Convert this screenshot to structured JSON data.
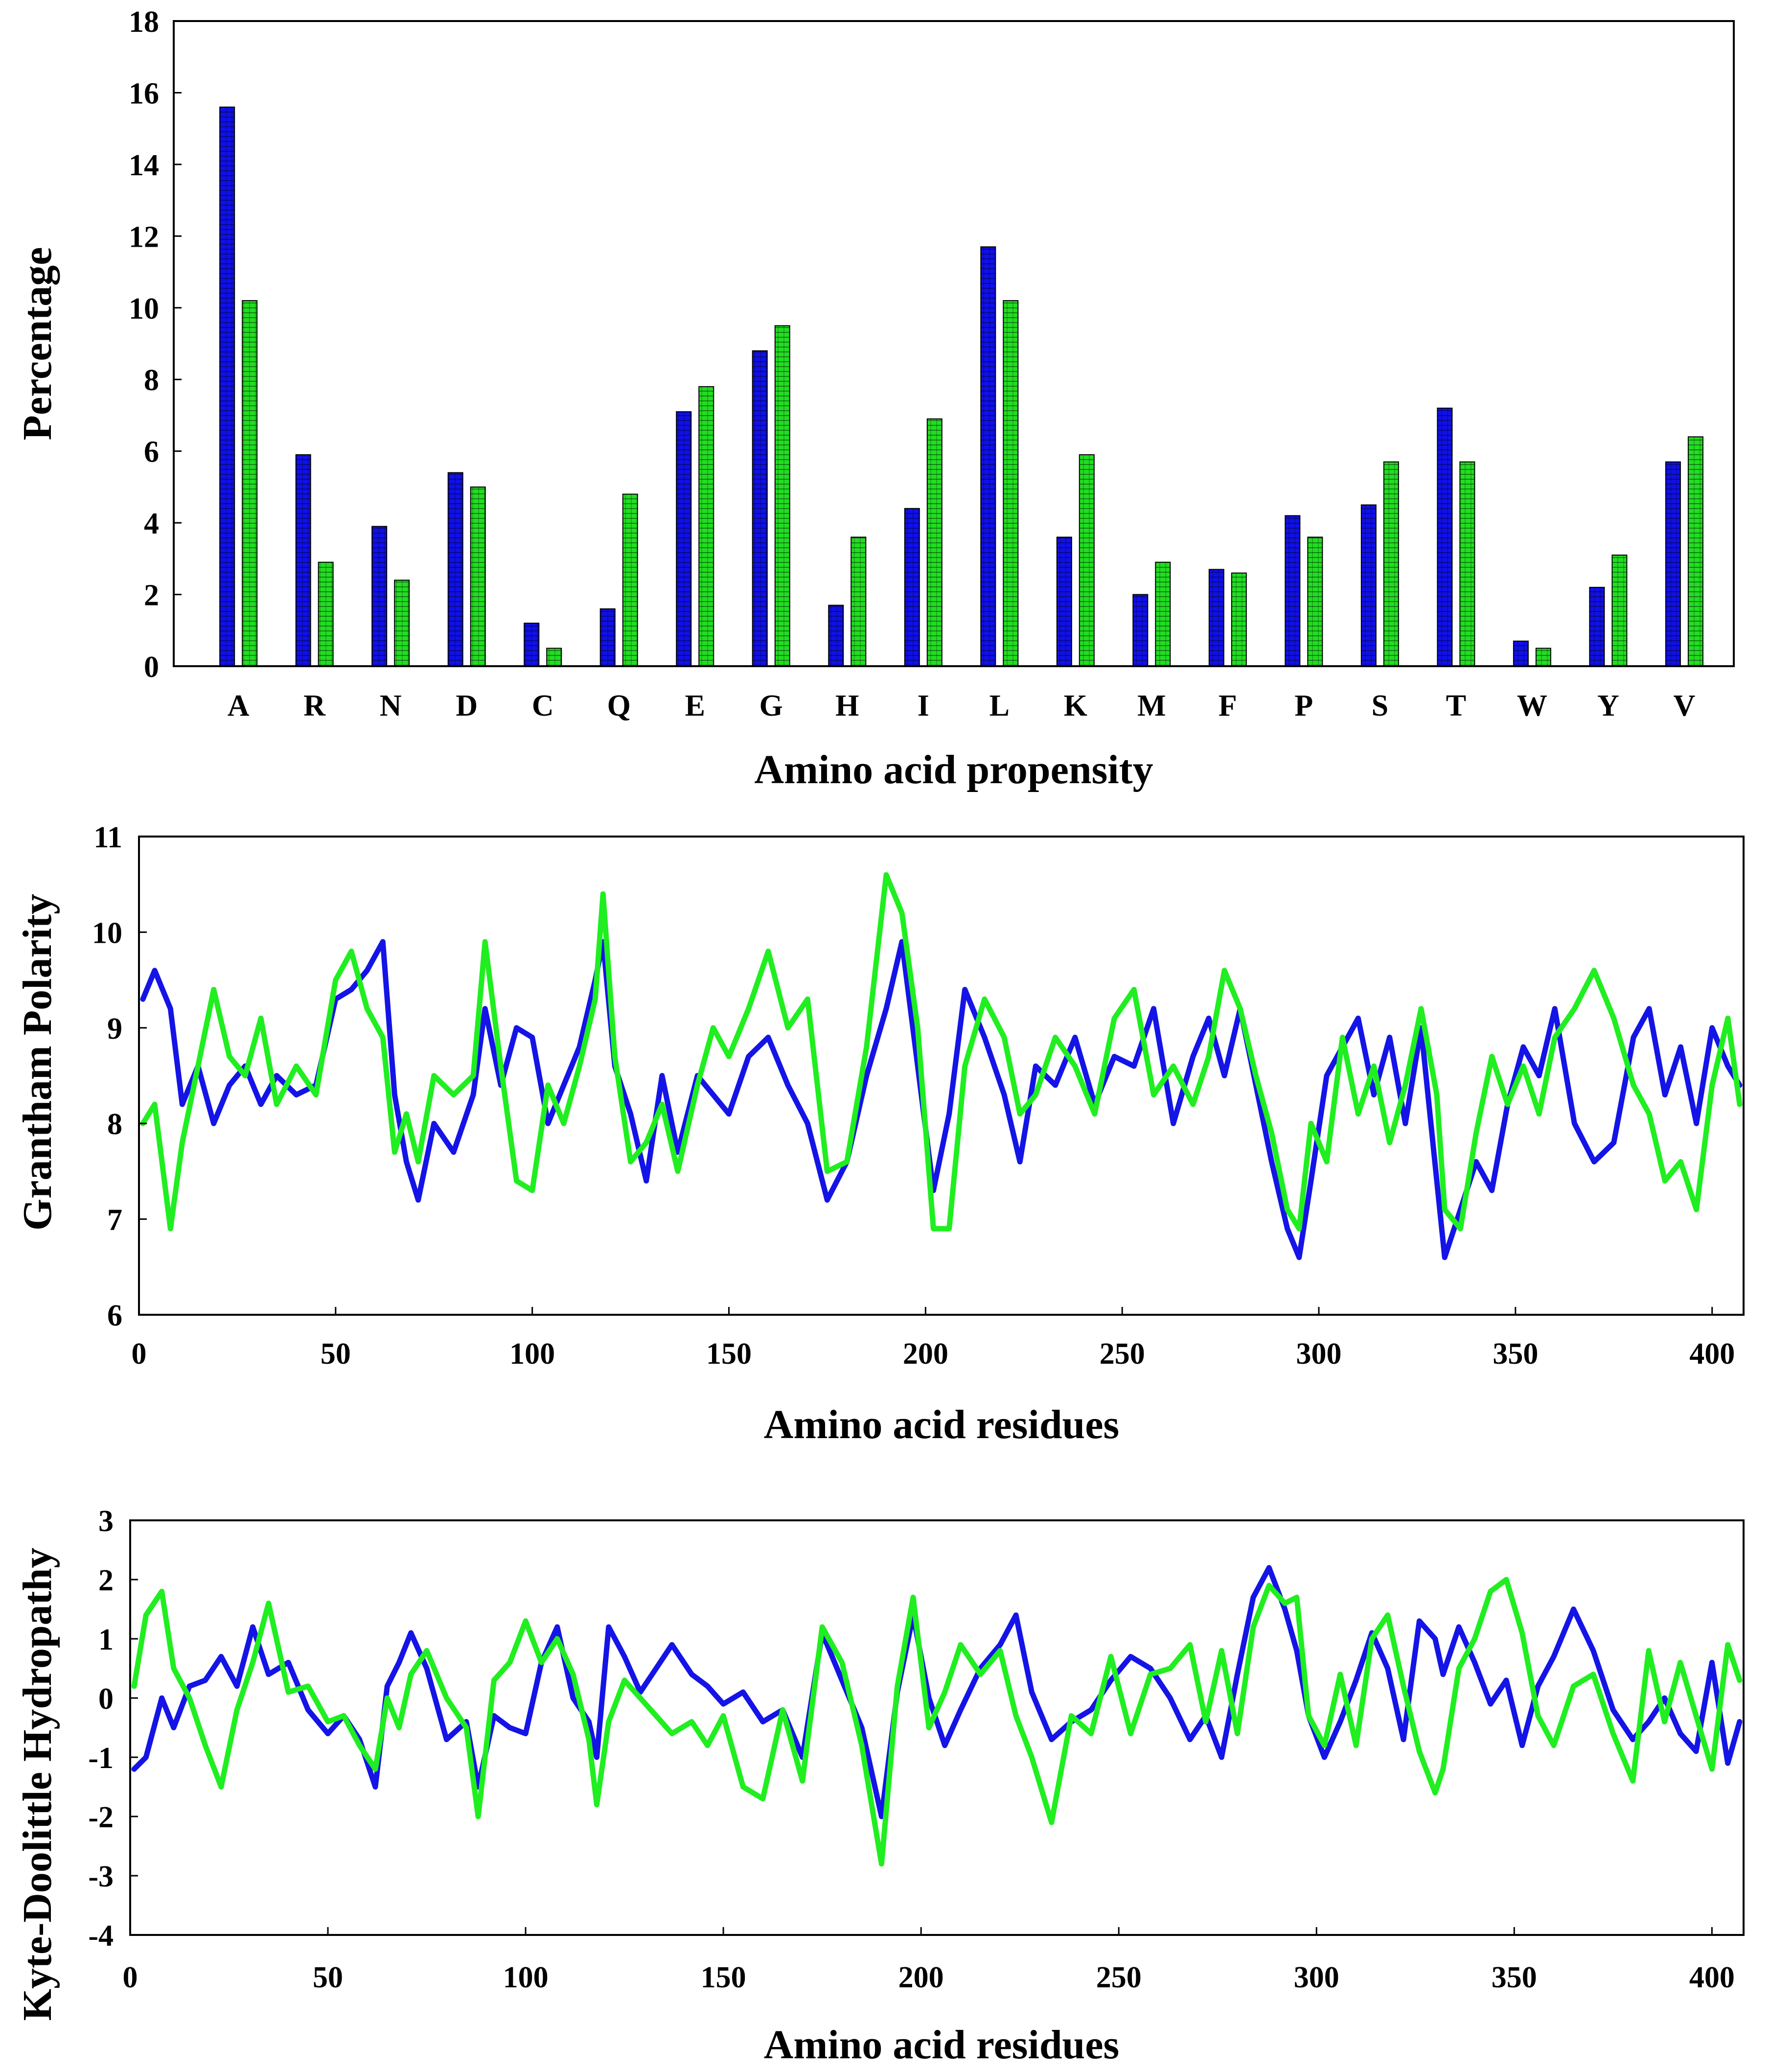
{
  "colors": {
    "series_blue": "#1010e8",
    "series_green": "#22dd22",
    "line_blue": "#1414e6",
    "line_green": "#20ee20",
    "axis": "#000000"
  },
  "chart_data": [
    {
      "id": "composition",
      "type": "bar",
      "title": "",
      "xlabel": "Amino acid propensity",
      "ylabel": "Percentage",
      "ylim": [
        0,
        18
      ],
      "yticks": [
        "0",
        "2",
        "4",
        "6",
        "8",
        "10",
        "12",
        "14",
        "16",
        "18"
      ],
      "categories": [
        "A",
        "R",
        "N",
        "D",
        "C",
        "Q",
        "E",
        "G",
        "H",
        "I",
        "L",
        "K",
        "M",
        "F",
        "P",
        "S",
        "T",
        "W",
        "Y",
        "V"
      ],
      "series": [
        {
          "name": "blue",
          "values": [
            15.6,
            5.9,
            3.9,
            5.4,
            1.2,
            1.6,
            7.1,
            8.8,
            1.7,
            4.4,
            11.7,
            3.6,
            2.0,
            2.7,
            4.2,
            4.5,
            7.2,
            0.7,
            2.2,
            5.7
          ]
        },
        {
          "name": "green",
          "values": [
            10.2,
            2.9,
            2.4,
            5.0,
            0.5,
            4.8,
            7.8,
            9.5,
            3.6,
            6.9,
            10.2,
            5.9,
            2.9,
            2.6,
            3.6,
            5.7,
            5.7,
            0.5,
            3.1,
            6.4
          ]
        }
      ]
    },
    {
      "id": "polarity",
      "type": "line",
      "title": "",
      "xlabel": "Amino acid residues",
      "ylabel": "Grantham Polarity",
      "xlim": [
        0,
        408
      ],
      "ylim": [
        6,
        11
      ],
      "xticks": [
        "0",
        "50",
        "100",
        "150",
        "200",
        "250",
        "300",
        "350",
        "400"
      ],
      "yticks": [
        "6",
        "7",
        "8",
        "9",
        "10",
        "11"
      ],
      "series": [
        {
          "name": "blue",
          "x": [
            1,
            4,
            8,
            11,
            15,
            19,
            23,
            27,
            31,
            35,
            40,
            45,
            50,
            54,
            58,
            62,
            65,
            68,
            71,
            75,
            80,
            85,
            88,
            92,
            96,
            100,
            104,
            108,
            112,
            116,
            118,
            121,
            125,
            129,
            133,
            137,
            142,
            146,
            150,
            155,
            160,
            165,
            170,
            175,
            180,
            185,
            190,
            194,
            198,
            202,
            206,
            210,
            215,
            220,
            224,
            228,
            233,
            238,
            243,
            248,
            253,
            258,
            263,
            268,
            272,
            276,
            280,
            284,
            288,
            292,
            295,
            298,
            302,
            306,
            310,
            314,
            318,
            322,
            326,
            330,
            332,
            336,
            340,
            344,
            348,
            352,
            356,
            360,
            365,
            370,
            375,
            380,
            384,
            388,
            392,
            396,
            400,
            404,
            407
          ],
          "y": [
            9.3,
            9.6,
            9.2,
            8.2,
            8.6,
            8.0,
            8.4,
            8.6,
            8.2,
            8.5,
            8.3,
            8.4,
            9.3,
            9.4,
            9.6,
            9.9,
            8.3,
            7.6,
            7.2,
            8.0,
            7.7,
            8.3,
            9.2,
            8.4,
            9.0,
            8.9,
            8.0,
            8.4,
            8.8,
            9.5,
            9.9,
            8.6,
            8.1,
            7.4,
            8.5,
            7.7,
            8.5,
            8.3,
            8.1,
            8.7,
            8.9,
            8.4,
            8.0,
            7.2,
            7.6,
            8.5,
            9.2,
            9.9,
            8.6,
            7.3,
            8.1,
            9.4,
            8.9,
            8.3,
            7.6,
            8.6,
            8.4,
            8.9,
            8.2,
            8.7,
            8.6,
            9.2,
            8.0,
            8.7,
            9.1,
            8.5,
            9.2,
            8.4,
            7.6,
            6.9,
            6.6,
            7.4,
            8.5,
            8.8,
            9.1,
            8.3,
            8.9,
            8.0,
            9.0,
            7.4,
            6.6,
            7.1,
            7.6,
            7.3,
            8.2,
            8.8,
            8.5,
            9.2,
            8.0,
            7.6,
            7.8,
            8.9,
            9.2,
            8.3,
            8.8,
            8.0,
            9.0,
            8.6,
            8.4
          ]
        },
        {
          "name": "green",
          "x": [
            1,
            4,
            8,
            11,
            15,
            19,
            23,
            27,
            31,
            35,
            40,
            45,
            50,
            54,
            58,
            62,
            65,
            68,
            71,
            75,
            80,
            85,
            88,
            92,
            96,
            100,
            104,
            108,
            112,
            116,
            118,
            121,
            125,
            129,
            133,
            137,
            142,
            146,
            150,
            155,
            160,
            165,
            170,
            175,
            180,
            185,
            190,
            194,
            198,
            202,
            206,
            210,
            215,
            220,
            224,
            228,
            233,
            238,
            243,
            248,
            253,
            258,
            263,
            268,
            272,
            276,
            280,
            284,
            288,
            292,
            295,
            298,
            302,
            306,
            310,
            314,
            318,
            322,
            326,
            330,
            332,
            336,
            340,
            344,
            348,
            352,
            356,
            360,
            365,
            370,
            375,
            380,
            384,
            388,
            392,
            396,
            400,
            404,
            407
          ],
          "y": [
            8.0,
            8.2,
            6.9,
            7.8,
            8.6,
            9.4,
            8.7,
            8.5,
            9.1,
            8.2,
            8.6,
            8.3,
            9.5,
            9.8,
            9.2,
            8.9,
            7.7,
            8.1,
            7.6,
            8.5,
            8.3,
            8.5,
            9.9,
            8.6,
            7.4,
            7.3,
            8.4,
            8.0,
            8.6,
            9.3,
            10.4,
            8.7,
            7.6,
            7.8,
            8.2,
            7.5,
            8.4,
            9.0,
            8.7,
            9.2,
            9.8,
            9.0,
            9.3,
            7.5,
            7.6,
            8.8,
            10.6,
            10.2,
            9.0,
            6.9,
            6.9,
            8.6,
            9.3,
            8.9,
            8.1,
            8.3,
            8.9,
            8.6,
            8.1,
            9.1,
            9.4,
            8.3,
            8.6,
            8.2,
            8.7,
            9.6,
            9.2,
            8.5,
            7.9,
            7.1,
            6.9,
            8.0,
            7.6,
            8.9,
            8.1,
            8.6,
            7.8,
            8.4,
            9.2,
            8.3,
            7.1,
            6.9,
            7.9,
            8.7,
            8.2,
            8.6,
            8.1,
            8.9,
            9.2,
            9.6,
            9.1,
            8.4,
            8.1,
            7.4,
            7.6,
            7.1,
            8.4,
            9.1,
            8.2
          ]
        }
      ]
    },
    {
      "id": "hydropathy",
      "type": "line",
      "title": "",
      "xlabel": "Amino acid residues",
      "ylabel": "Kyte-Doolittle Hydropathy",
      "xlim": [
        0,
        408
      ],
      "ylim": [
        -4,
        3
      ],
      "xticks": [
        "0",
        "50",
        "100",
        "150",
        "200",
        "250",
        "300",
        "350",
        "400"
      ],
      "yticks": [
        "-4",
        "-3",
        "-2",
        "-1",
        "0",
        "1",
        "2",
        "3"
      ],
      "series": [
        {
          "name": "blue",
          "x": [
            1,
            4,
            8,
            11,
            15,
            19,
            23,
            27,
            31,
            35,
            40,
            45,
            50,
            54,
            58,
            62,
            65,
            68,
            71,
            75,
            80,
            85,
            88,
            92,
            96,
            100,
            104,
            108,
            112,
            116,
            118,
            121,
            125,
            129,
            133,
            137,
            142,
            146,
            150,
            155,
            160,
            165,
            170,
            175,
            180,
            185,
            190,
            194,
            198,
            202,
            206,
            210,
            215,
            220,
            224,
            228,
            233,
            238,
            243,
            248,
            253,
            258,
            263,
            268,
            272,
            276,
            280,
            284,
            288,
            292,
            295,
            298,
            302,
            306,
            310,
            314,
            318,
            322,
            326,
            330,
            332,
            336,
            340,
            344,
            348,
            352,
            356,
            360,
            365,
            370,
            375,
            380,
            384,
            388,
            392,
            396,
            400,
            404,
            407
          ],
          "y": [
            -1.2,
            -1.0,
            0.0,
            -0.5,
            0.2,
            0.3,
            0.7,
            0.2,
            1.2,
            0.4,
            0.6,
            -0.2,
            -0.6,
            -0.3,
            -0.7,
            -1.5,
            0.2,
            0.6,
            1.1,
            0.5,
            -0.7,
            -0.4,
            -1.5,
            -0.3,
            -0.5,
            -0.6,
            0.6,
            1.2,
            0.0,
            -0.4,
            -1.0,
            1.2,
            0.7,
            0.1,
            0.5,
            0.9,
            0.4,
            0.2,
            -0.1,
            0.1,
            -0.4,
            -0.2,
            -1.0,
            1.1,
            0.3,
            -0.5,
            -2.0,
            0.1,
            1.4,
            0.0,
            -0.8,
            -0.2,
            0.5,
            0.9,
            1.4,
            0.1,
            -0.7,
            -0.4,
            -0.2,
            0.3,
            0.7,
            0.5,
            0.0,
            -0.7,
            -0.3,
            -1.0,
            0.4,
            1.7,
            2.2,
            1.5,
            0.8,
            -0.3,
            -1.0,
            -0.4,
            0.3,
            1.1,
            0.5,
            -0.7,
            1.3,
            1.0,
            0.4,
            1.2,
            0.6,
            -0.1,
            0.3,
            -0.8,
            0.2,
            0.7,
            1.5,
            0.8,
            -0.2,
            -0.7,
            -0.4,
            0.0,
            -0.6,
            -0.9,
            0.6,
            -1.1,
            -0.4
          ]
        },
        {
          "name": "green",
          "x": [
            1,
            4,
            8,
            11,
            15,
            19,
            23,
            27,
            31,
            35,
            40,
            45,
            50,
            54,
            58,
            62,
            65,
            68,
            71,
            75,
            80,
            85,
            88,
            92,
            96,
            100,
            104,
            108,
            112,
            116,
            118,
            121,
            125,
            129,
            133,
            137,
            142,
            146,
            150,
            155,
            160,
            165,
            170,
            175,
            180,
            185,
            190,
            194,
            198,
            202,
            206,
            210,
            215,
            220,
            224,
            228,
            233,
            238,
            243,
            248,
            253,
            258,
            263,
            268,
            272,
            276,
            280,
            284,
            288,
            292,
            295,
            298,
            302,
            306,
            310,
            314,
            318,
            322,
            326,
            330,
            332,
            336,
            340,
            344,
            348,
            352,
            356,
            360,
            365,
            370,
            375,
            380,
            384,
            388,
            392,
            396,
            400,
            404,
            407
          ],
          "y": [
            0.2,
            1.4,
            1.8,
            0.5,
            0.0,
            -0.8,
            -1.5,
            -0.2,
            0.6,
            1.6,
            0.1,
            0.2,
            -0.4,
            -0.3,
            -0.8,
            -1.2,
            0.0,
            -0.5,
            0.4,
            0.8,
            0.0,
            -0.5,
            -2.0,
            0.3,
            0.6,
            1.3,
            0.6,
            1.0,
            0.4,
            -0.7,
            -1.8,
            -0.4,
            0.3,
            0.0,
            -0.3,
            -0.6,
            -0.4,
            -0.8,
            -0.3,
            -1.5,
            -1.7,
            -0.2,
            -1.4,
            1.2,
            0.6,
            -0.8,
            -2.8,
            0.2,
            1.7,
            -0.5,
            0.1,
            0.9,
            0.4,
            0.8,
            -0.3,
            -1.0,
            -2.1,
            -0.3,
            -0.6,
            0.7,
            -0.6,
            0.4,
            0.5,
            0.9,
            -0.4,
            0.8,
            -0.6,
            1.2,
            1.9,
            1.6,
            1.7,
            -0.3,
            -0.8,
            0.4,
            -0.8,
            1.0,
            1.4,
            0.2,
            -0.9,
            -1.6,
            -1.2,
            0.5,
            1.0,
            1.8,
            2.0,
            1.1,
            -0.3,
            -0.8,
            0.2,
            0.4,
            -0.6,
            -1.4,
            0.8,
            -0.4,
            0.6,
            -0.3,
            -1.2,
            0.9,
            0.3
          ]
        }
      ]
    }
  ]
}
